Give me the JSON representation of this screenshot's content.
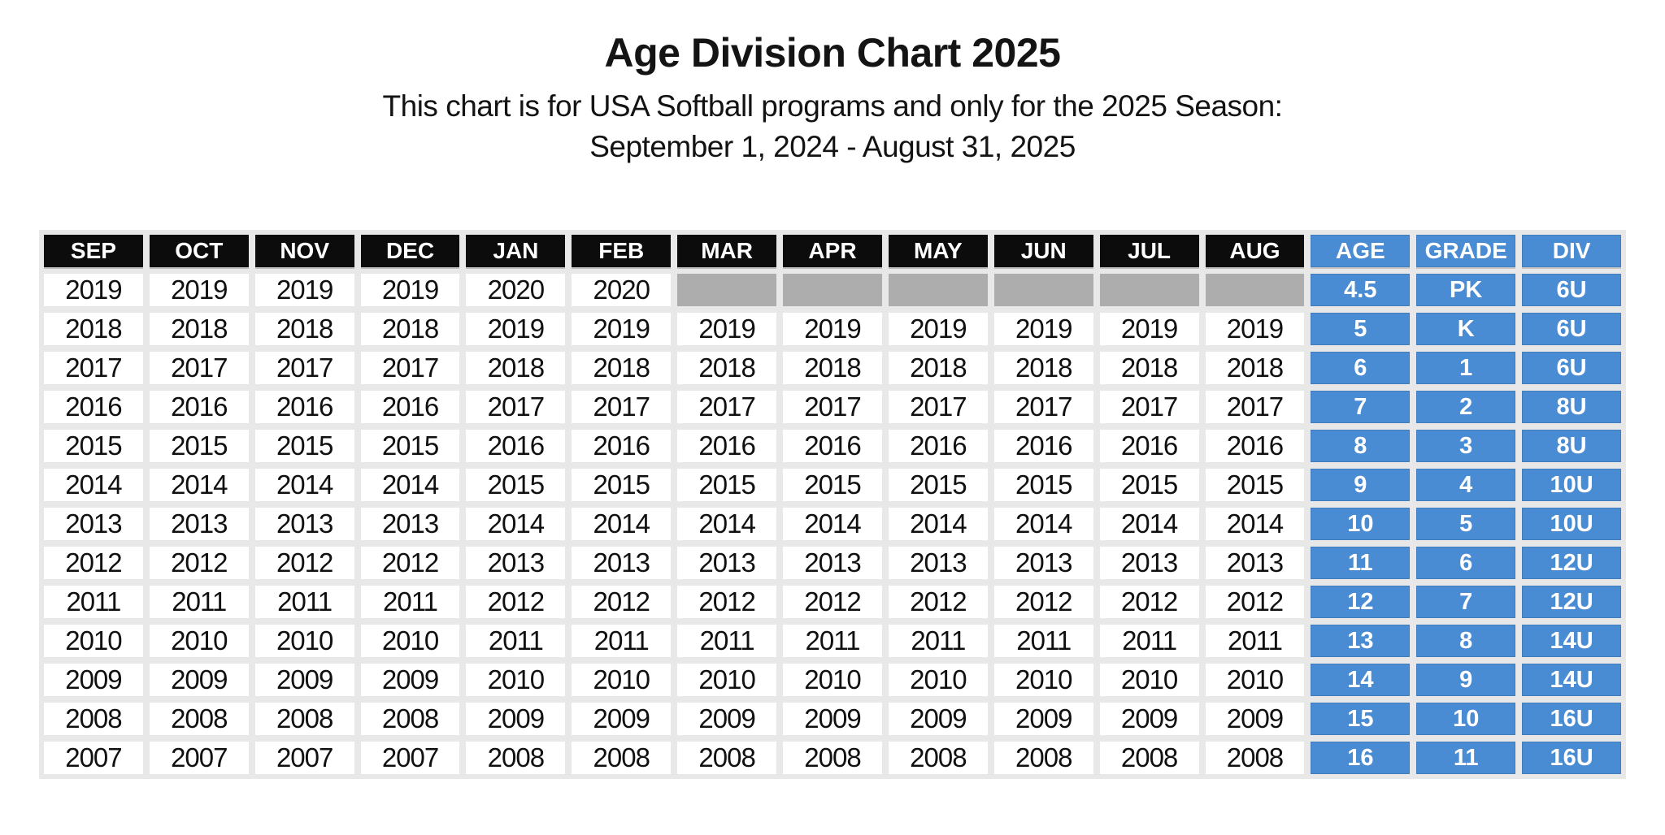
{
  "page": {
    "title": "Age Division Chart 2025",
    "subtitle": "This chart is for USA Softball programs and only for the 2025 Season:",
    "date_range": "September 1, 2024 - August 31, 2025"
  },
  "colors": {
    "month_header_bg": "#0c0c0c",
    "info_blue": "#4a8cd4",
    "empty_gray": "#adadad",
    "frame_gray": "#e8e8e8",
    "cell_white": "#ffffff",
    "header_text": "#ffffff",
    "year_text": "#101010"
  },
  "chart_data": {
    "type": "table",
    "title": "Age Division Chart 2025",
    "season": "September 1, 2024 - August 31, 2025",
    "month_columns": [
      "SEP",
      "OCT",
      "NOV",
      "DEC",
      "JAN",
      "FEB",
      "MAR",
      "APR",
      "MAY",
      "JUN",
      "JUL",
      "AUG"
    ],
    "info_columns": [
      "AGE",
      "GRADE",
      "DIV"
    ],
    "rows": [
      {
        "months": [
          "2019",
          "2019",
          "2019",
          "2019",
          "2020",
          "2020",
          "",
          "",
          "",
          "",
          "",
          ""
        ],
        "age": "4.5",
        "grade": "PK",
        "div": "6U"
      },
      {
        "months": [
          "2018",
          "2018",
          "2018",
          "2018",
          "2019",
          "2019",
          "2019",
          "2019",
          "2019",
          "2019",
          "2019",
          "2019"
        ],
        "age": "5",
        "grade": "K",
        "div": "6U"
      },
      {
        "months": [
          "2017",
          "2017",
          "2017",
          "2017",
          "2018",
          "2018",
          "2018",
          "2018",
          "2018",
          "2018",
          "2018",
          "2018"
        ],
        "age": "6",
        "grade": "1",
        "div": "6U"
      },
      {
        "months": [
          "2016",
          "2016",
          "2016",
          "2016",
          "2017",
          "2017",
          "2017",
          "2017",
          "2017",
          "2017",
          "2017",
          "2017"
        ],
        "age": "7",
        "grade": "2",
        "div": "8U"
      },
      {
        "months": [
          "2015",
          "2015",
          "2015",
          "2015",
          "2016",
          "2016",
          "2016",
          "2016",
          "2016",
          "2016",
          "2016",
          "2016"
        ],
        "age": "8",
        "grade": "3",
        "div": "8U"
      },
      {
        "months": [
          "2014",
          "2014",
          "2014",
          "2014",
          "2015",
          "2015",
          "2015",
          "2015",
          "2015",
          "2015",
          "2015",
          "2015"
        ],
        "age": "9",
        "grade": "4",
        "div": "10U"
      },
      {
        "months": [
          "2013",
          "2013",
          "2013",
          "2013",
          "2014",
          "2014",
          "2014",
          "2014",
          "2014",
          "2014",
          "2014",
          "2014"
        ],
        "age": "10",
        "grade": "5",
        "div": "10U"
      },
      {
        "months": [
          "2012",
          "2012",
          "2012",
          "2012",
          "2013",
          "2013",
          "2013",
          "2013",
          "2013",
          "2013",
          "2013",
          "2013"
        ],
        "age": "11",
        "grade": "6",
        "div": "12U"
      },
      {
        "months": [
          "2011",
          "2011",
          "2011",
          "2011",
          "2012",
          "2012",
          "2012",
          "2012",
          "2012",
          "2012",
          "2012",
          "2012"
        ],
        "age": "12",
        "grade": "7",
        "div": "12U"
      },
      {
        "months": [
          "2010",
          "2010",
          "2010",
          "2010",
          "2011",
          "2011",
          "2011",
          "2011",
          "2011",
          "2011",
          "2011",
          "2011"
        ],
        "age": "13",
        "grade": "8",
        "div": "14U"
      },
      {
        "months": [
          "2009",
          "2009",
          "2009",
          "2009",
          "2010",
          "2010",
          "2010",
          "2010",
          "2010",
          "2010",
          "2010",
          "2010"
        ],
        "age": "14",
        "grade": "9",
        "div": "14U"
      },
      {
        "months": [
          "2008",
          "2008",
          "2008",
          "2008",
          "2009",
          "2009",
          "2009",
          "2009",
          "2009",
          "2009",
          "2009",
          "2009"
        ],
        "age": "15",
        "grade": "10",
        "div": "16U"
      },
      {
        "months": [
          "2007",
          "2007",
          "2007",
          "2007",
          "2008",
          "2008",
          "2008",
          "2008",
          "2008",
          "2008",
          "2008",
          "2008"
        ],
        "age": "16",
        "grade": "11",
        "div": "16U"
      }
    ]
  }
}
